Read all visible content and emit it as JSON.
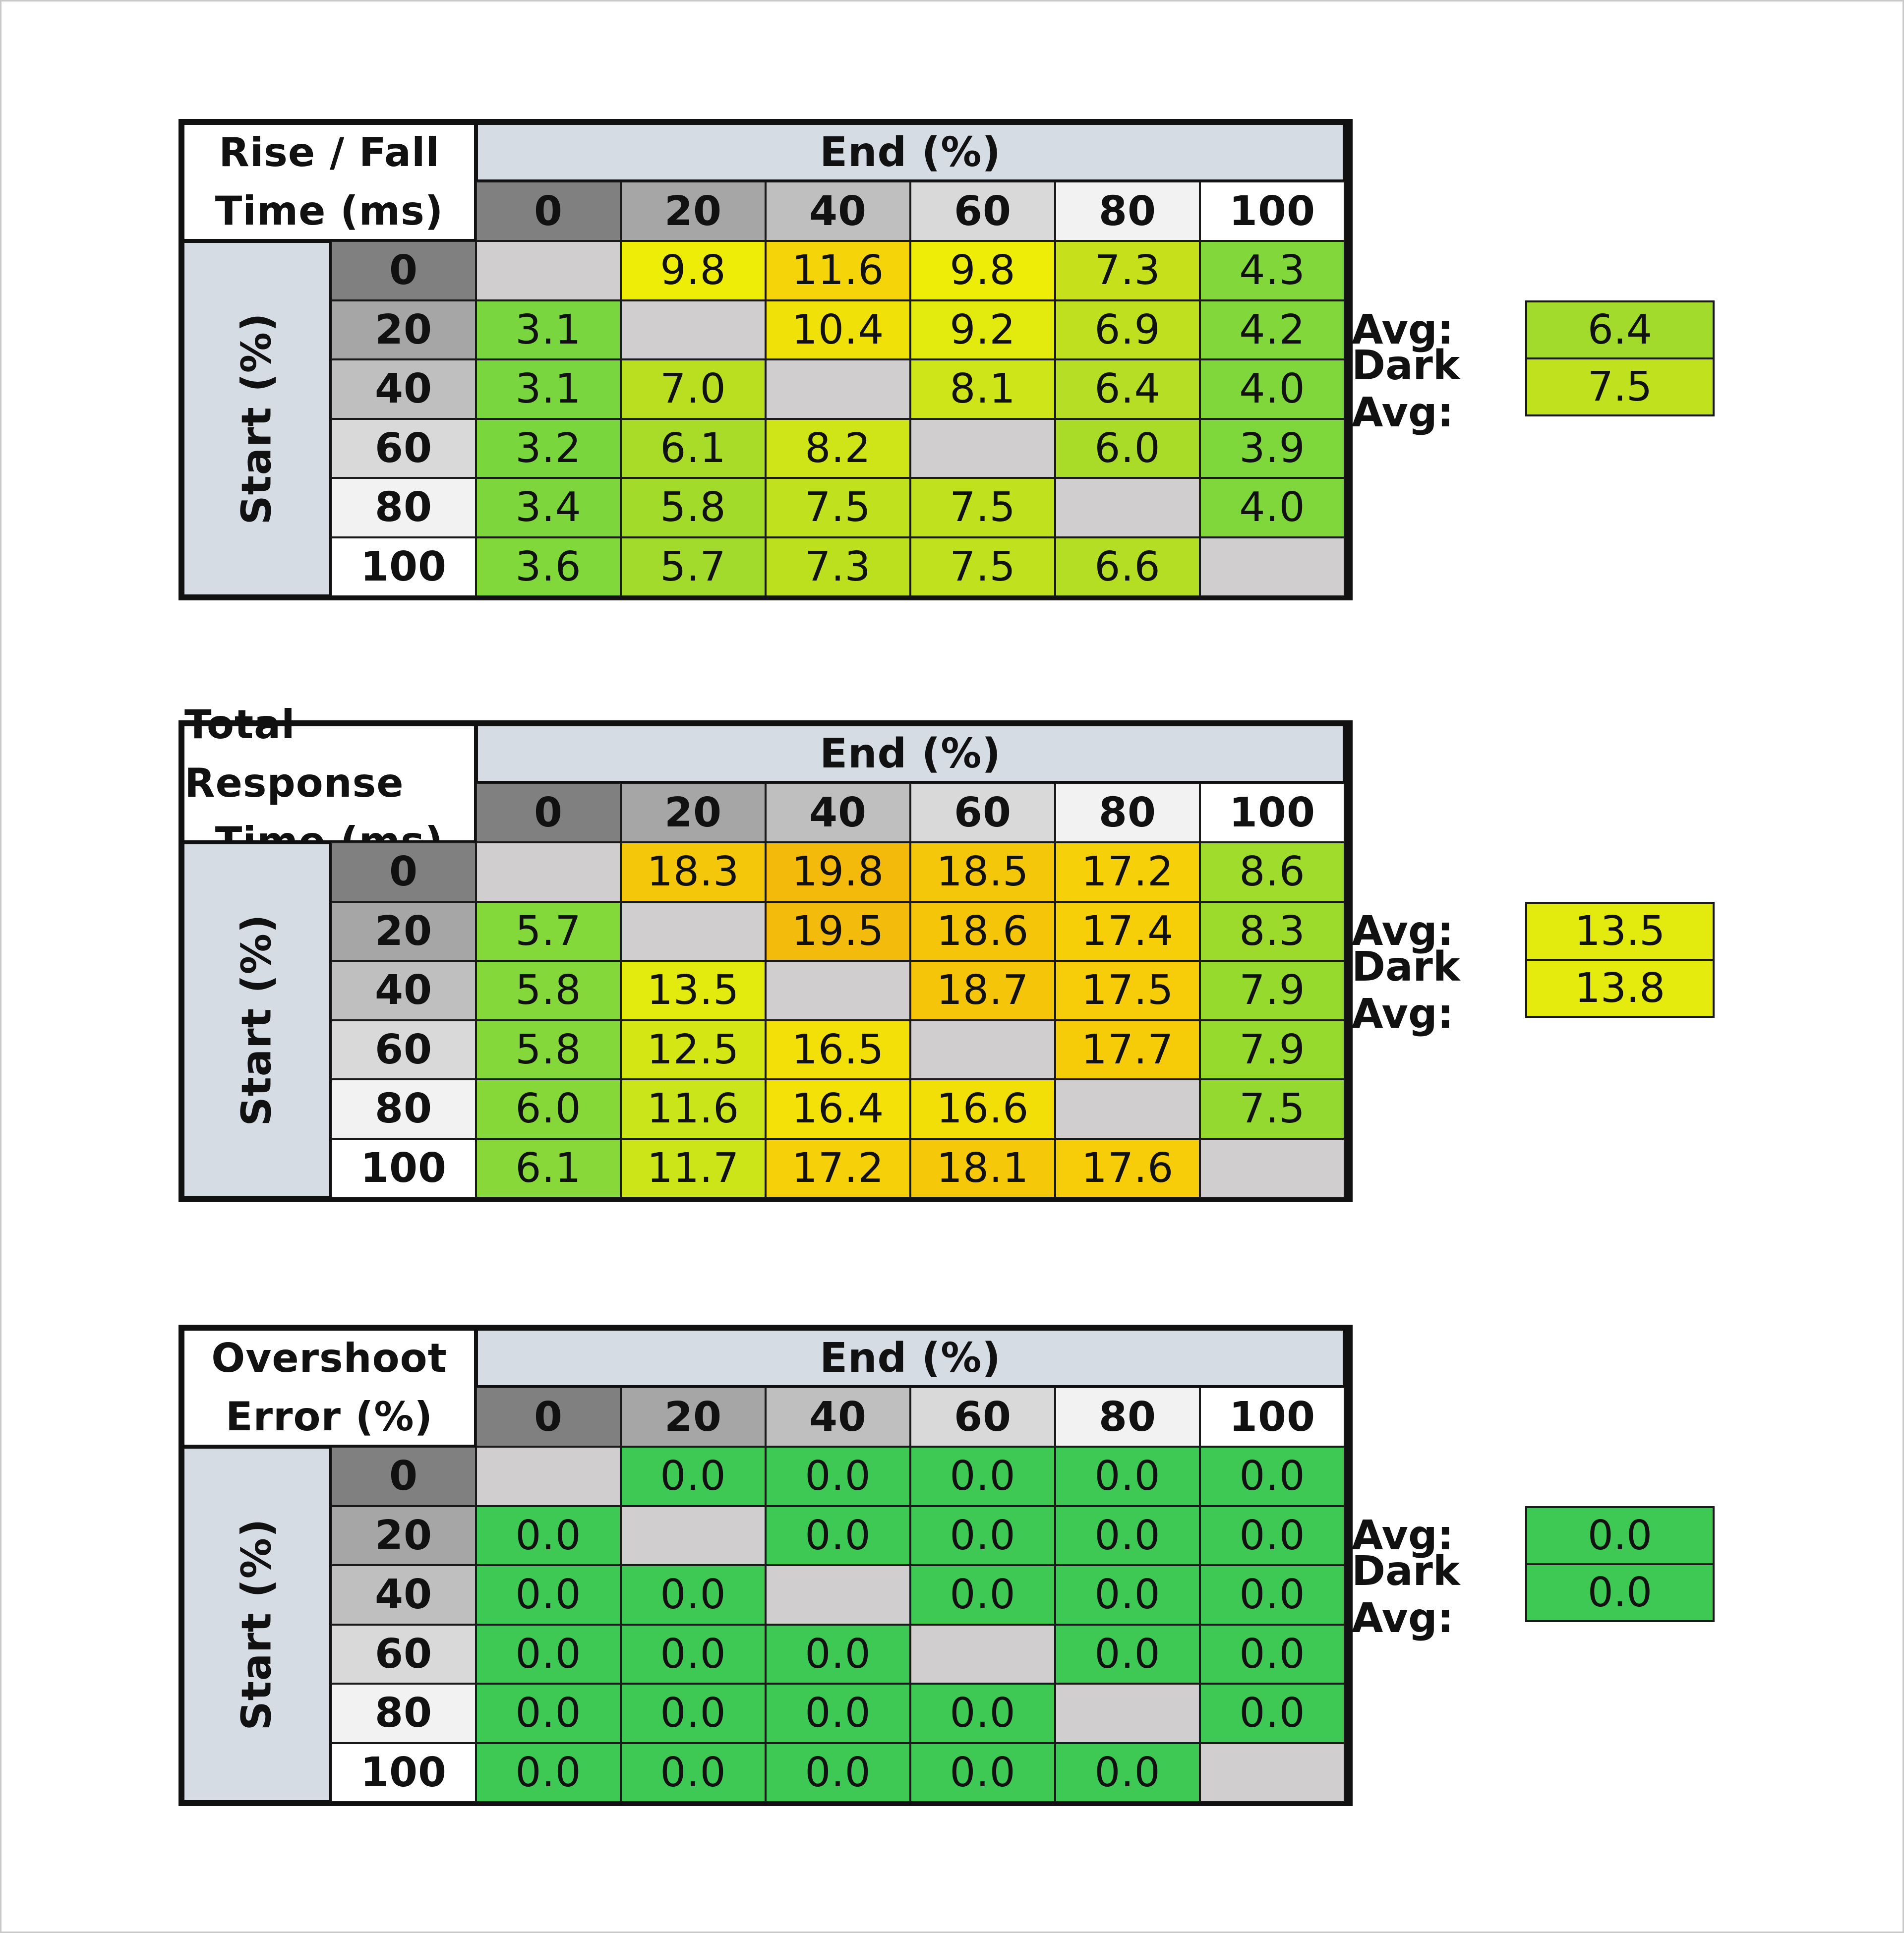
{
  "levels": [
    "0",
    "20",
    "40",
    "60",
    "80",
    "100"
  ],
  "level_colors": [
    "#808080",
    "#a6a6a6",
    "#bfbfbf",
    "#d9d9d9",
    "#f2f2f2",
    "#ffffff"
  ],
  "labels": {
    "end": "End (%)",
    "start": "Start (%)",
    "avg": "Avg:",
    "dark_avg": "Dark Avg:"
  },
  "chart_data": [
    {
      "type": "heatmap",
      "title_lines": [
        "Rise / Fall",
        "Time (ms)"
      ],
      "xlabel": "End (%)",
      "ylabel": "Start (%)",
      "x": [
        "0",
        "20",
        "40",
        "60",
        "80",
        "100"
      ],
      "y": [
        "0",
        "20",
        "40",
        "60",
        "80",
        "100"
      ],
      "values": [
        [
          null,
          "9.8",
          "11.6",
          "9.8",
          "7.3",
          "4.3"
        ],
        [
          "3.1",
          null,
          "10.4",
          "9.2",
          "6.9",
          "4.2"
        ],
        [
          "3.1",
          "7.0",
          null,
          "8.1",
          "6.4",
          "4.0"
        ],
        [
          "3.2",
          "6.1",
          "8.2",
          null,
          "6.0",
          "3.9"
        ],
        [
          "3.4",
          "5.8",
          "7.5",
          "7.5",
          null,
          "4.0"
        ],
        [
          "3.6",
          "5.7",
          "7.3",
          "7.5",
          "6.6",
          null
        ]
      ],
      "colors": [
        [
          "#d0cece",
          "#eded08",
          "#f5d409",
          "#eded08",
          "#c6e11b",
          "#82d83a"
        ],
        [
          "#79d63e",
          "#d0cece",
          "#f0e208",
          "#e3ea0e",
          "#bfe01e",
          "#82d83a"
        ],
        [
          "#79d63e",
          "#b9df20",
          "#d0cece",
          "#cde519",
          "#b5de24",
          "#7fd73b"
        ],
        [
          "#7ad63d",
          "#a8dc28",
          "#cfe518",
          "#d0cece",
          "#a8dc28",
          "#7ed73b"
        ],
        [
          "#7dd73c",
          "#a3db2a",
          "#c0e11d",
          "#c0e11d",
          "#d0cece",
          "#7fd73b"
        ],
        [
          "#80d83b",
          "#a2db2b",
          "#bde01e",
          "#c0e11d",
          "#b3de24",
          "#d0cece"
        ]
      ],
      "avg": "6.4",
      "dark_avg": "7.5",
      "avg_color": "#a2db2b",
      "dark_avg_color": "#c0e11d"
    },
    {
      "type": "heatmap",
      "title_lines": [
        "Total Response",
        "Time (ms)"
      ],
      "xlabel": "End (%)",
      "ylabel": "Start (%)",
      "x": [
        "0",
        "20",
        "40",
        "60",
        "80",
        "100"
      ],
      "y": [
        "0",
        "20",
        "40",
        "60",
        "80",
        "100"
      ],
      "values": [
        [
          null,
          "18.3",
          "19.8",
          "18.5",
          "17.2",
          "8.6"
        ],
        [
          "5.7",
          null,
          "19.5",
          "18.6",
          "17.4",
          "8.3"
        ],
        [
          "5.8",
          "13.5",
          null,
          "18.7",
          "17.5",
          "7.9"
        ],
        [
          "5.8",
          "12.5",
          "16.5",
          null,
          "17.7",
          "7.9"
        ],
        [
          "6.0",
          "11.6",
          "16.4",
          "16.6",
          null,
          "7.5"
        ],
        [
          "6.1",
          "11.7",
          "17.2",
          "18.1",
          "17.6",
          null
        ]
      ],
      "colors": [
        [
          "#d0cece",
          "#f5c70a",
          "#f3b90b",
          "#f5c70a",
          "#f6d008",
          "#9fdc2c"
        ],
        [
          "#83d83a",
          "#d0cece",
          "#f3bb0b",
          "#f5c50a",
          "#f6cf08",
          "#9cdb2c"
        ],
        [
          "#84d83a",
          "#e2ea0e",
          "#d0cece",
          "#f5c50a",
          "#f6cd08",
          "#96da2e"
        ],
        [
          "#84d83a",
          "#d4e715",
          "#f3e008",
          "#d0cece",
          "#f6cc08",
          "#96da2e"
        ],
        [
          "#86d839",
          "#cae519",
          "#f3e108",
          "#f3df08",
          "#d0cece",
          "#93d92f"
        ],
        [
          "#88d839",
          "#cbe518",
          "#f6d008",
          "#f5c80a",
          "#f6cd08",
          "#d0cece"
        ]
      ],
      "avg": "13.5",
      "dark_avg": "13.8",
      "avg_color": "#e2ea0e",
      "dark_avg_color": "#e5eb0d"
    },
    {
      "type": "heatmap",
      "title_lines": [
        "Overshoot",
        "Error (%)"
      ],
      "xlabel": "End (%)",
      "ylabel": "Start (%)",
      "x": [
        "0",
        "20",
        "40",
        "60",
        "80",
        "100"
      ],
      "y": [
        "0",
        "20",
        "40",
        "60",
        "80",
        "100"
      ],
      "values": [
        [
          null,
          "0.0",
          "0.0",
          "0.0",
          "0.0",
          "0.0"
        ],
        [
          "0.0",
          null,
          "0.0",
          "0.0",
          "0.0",
          "0.0"
        ],
        [
          "0.0",
          "0.0",
          null,
          "0.0",
          "0.0",
          "0.0"
        ],
        [
          "0.0",
          "0.0",
          "0.0",
          null,
          "0.0",
          "0.0"
        ],
        [
          "0.0",
          "0.0",
          "0.0",
          "0.0",
          null,
          "0.0"
        ],
        [
          "0.0",
          "0.0",
          "0.0",
          "0.0",
          "0.0",
          null
        ]
      ],
      "colors": [
        [
          "#d0cece",
          "#3ec954",
          "#3ec954",
          "#3ec954",
          "#3ec954",
          "#3ec954"
        ],
        [
          "#3ec954",
          "#d0cece",
          "#3ec954",
          "#3ec954",
          "#3ec954",
          "#3ec954"
        ],
        [
          "#3ec954",
          "#3ec954",
          "#d0cece",
          "#3ec954",
          "#3ec954",
          "#3ec954"
        ],
        [
          "#3ec954",
          "#3ec954",
          "#3ec954",
          "#d0cece",
          "#3ec954",
          "#3ec954"
        ],
        [
          "#3ec954",
          "#3ec954",
          "#3ec954",
          "#3ec954",
          "#d0cece",
          "#3ec954"
        ],
        [
          "#3ec954",
          "#3ec954",
          "#3ec954",
          "#3ec954",
          "#3ec954",
          "#d0cece"
        ]
      ],
      "avg": "0.0",
      "dark_avg": "0.0",
      "avg_color": "#3ec954",
      "dark_avg_color": "#3ec954"
    }
  ]
}
